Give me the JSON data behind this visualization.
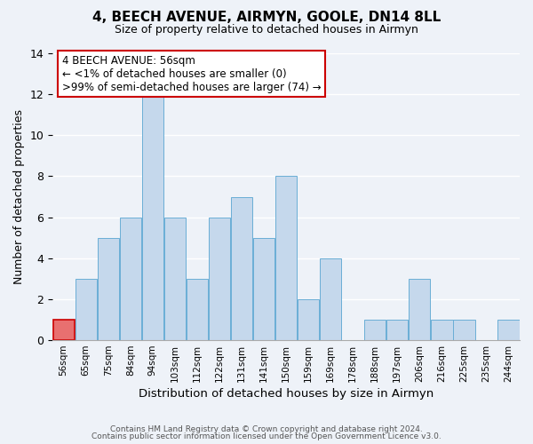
{
  "title": "4, BEECH AVENUE, AIRMYN, GOOLE, DN14 8LL",
  "subtitle": "Size of property relative to detached houses in Airmyn",
  "xlabel": "Distribution of detached houses by size in Airmyn",
  "ylabel": "Number of detached properties",
  "footer_line1": "Contains HM Land Registry data © Crown copyright and database right 2024.",
  "footer_line2": "Contains public sector information licensed under the Open Government Licence v3.0.",
  "bin_labels": [
    "56sqm",
    "65sqm",
    "75sqm",
    "84sqm",
    "94sqm",
    "103sqm",
    "112sqm",
    "122sqm",
    "131sqm",
    "141sqm",
    "150sqm",
    "159sqm",
    "169sqm",
    "178sqm",
    "188sqm",
    "197sqm",
    "206sqm",
    "216sqm",
    "225sqm",
    "235sqm",
    "244sqm"
  ],
  "bar_heights": [
    1,
    3,
    5,
    6,
    12,
    6,
    3,
    6,
    7,
    5,
    8,
    2,
    4,
    0,
    1,
    1,
    3,
    1,
    1,
    0,
    1
  ],
  "bar_color": "#c5d8ec",
  "bar_edge_color": "#6aaed6",
  "highlight_bar_index": 0,
  "highlight_color": "#e87070",
  "highlight_edge_color": "#cc0000",
  "ylim": [
    0,
    14
  ],
  "yticks": [
    0,
    2,
    4,
    6,
    8,
    10,
    12,
    14
  ],
  "annotation_title": "4 BEECH AVENUE: 56sqm",
  "annotation_line1": "← <1% of detached houses are smaller (0)",
  "annotation_line2": ">99% of semi-detached houses are larger (74) →",
  "annotation_box_facecolor": "#ffffff",
  "annotation_box_edgecolor": "#cc0000",
  "background_color": "#eef2f8",
  "grid_color": "#ffffff",
  "spine_color": "#aaaaaa"
}
